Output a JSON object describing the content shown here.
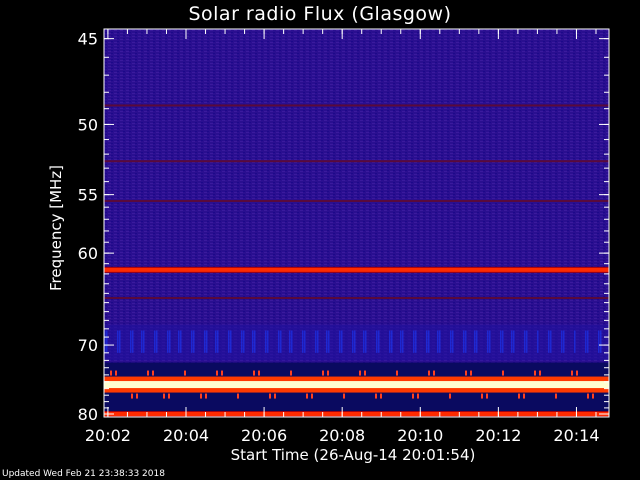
{
  "chart_data": {
    "type": "heatmap",
    "title": "Solar radio Flux (Glasgow)",
    "ylabel": "Frequency [MHz]",
    "xlabel": "Start Time (26-Aug-14 20:01:54)",
    "y_axis": {
      "ticks": [
        45,
        50,
        55,
        60,
        70,
        80
      ],
      "range": [
        44.5,
        80.5
      ],
      "scale": "reciprocal",
      "inverted": true
    },
    "x_axis": {
      "ticks": [
        "20:02",
        "20:04",
        "20:06",
        "20:08",
        "20:10",
        "20:12",
        "20:14"
      ],
      "range": [
        "20:01:54",
        "20:14:50"
      ]
    },
    "background_level": "dark violet / blue",
    "emission_bands": [
      {
        "frequency_mhz": 48.8,
        "intensity": "weak"
      },
      {
        "frequency_mhz": 52.5,
        "intensity": "weak"
      },
      {
        "frequency_mhz": 55.5,
        "intensity": "weak"
      },
      {
        "frequency_mhz": 61.6,
        "intensity": "strong"
      },
      {
        "frequency_mhz": 64.5,
        "intensity": "weak"
      },
      {
        "frequency_mhz": 75.4,
        "intensity": "saturated"
      },
      {
        "frequency_mhz": 80.0,
        "intensity": "strong"
      }
    ],
    "colors": {
      "low": "#10008a",
      "mid": "#3a1a9a",
      "band": "#8a0a20",
      "high": "#ff2a00",
      "peak": "#ffffd0"
    }
  },
  "footer": "Updated Wed Feb 21 23:38:33 2018"
}
